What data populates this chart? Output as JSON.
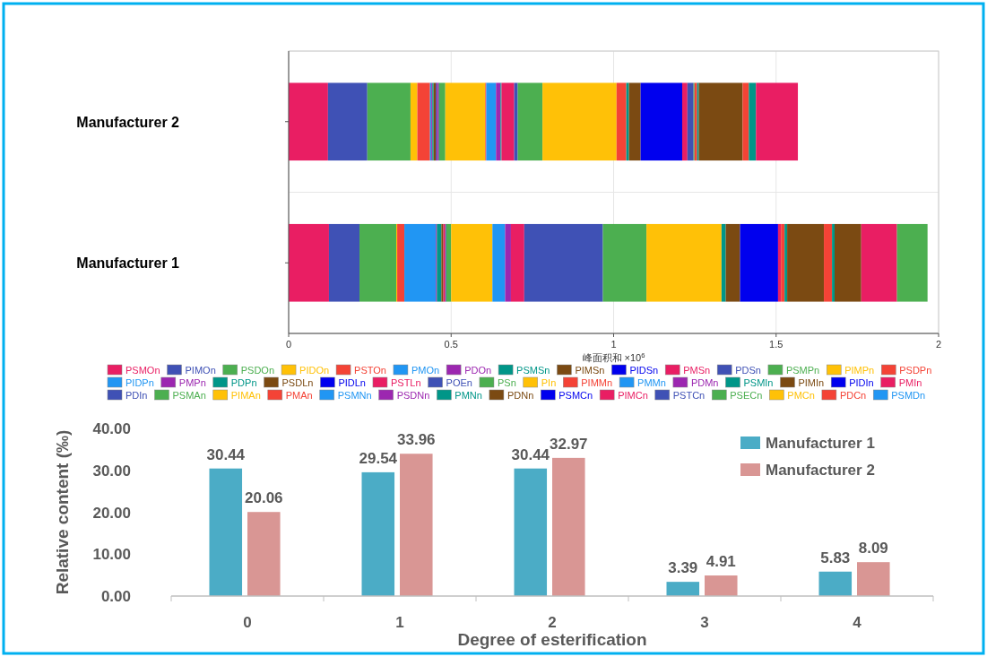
{
  "chart_data": [
    {
      "type": "bar",
      "orientation": "horizontal",
      "stacked": true,
      "categories": [
        "Manufacturer 2",
        "Manufacturer 1"
      ],
      "xlabel": "峰面积和 ×10$^{6}$",
      "xlim": [
        0,
        2
      ],
      "xticks": [
        0,
        0.5,
        1,
        1.5,
        2
      ],
      "grid": true,
      "legend": "bottom",
      "series": [
        {
          "name": "PSMOn",
          "color": "#e91e63",
          "values": [
            0.121,
            0.124
          ]
        },
        {
          "name": "PIMOn",
          "color": "#3f51b5",
          "values": [
            0.121,
            0.094
          ]
        },
        {
          "name": "PSDOn",
          "color": "#4caf50",
          "values": [
            0.133,
            0.113
          ]
        },
        {
          "name": "PIDOn",
          "color": "#ffc107",
          "values": [
            0.021,
            0.003
          ]
        },
        {
          "name": "PSTOn",
          "color": "#f44336",
          "values": [
            0.039,
            0.022
          ]
        },
        {
          "name": "PMOn",
          "color": "#2196f3",
          "values": [
            0.004,
            0.097
          ]
        },
        {
          "name": "PDOn",
          "color": "#9c27b0",
          "values": [
            0.003,
            0.003
          ]
        },
        {
          "name": "PSMSn",
          "color": "#009688",
          "values": [
            0.004,
            0.014
          ]
        },
        {
          "name": "PIMSn",
          "color": "#7b4a12",
          "values": [
            0.008,
            0.006
          ]
        },
        {
          "name": "PIDSn",
          "color": "#0000ee",
          "values": [
            0.003,
            null
          ]
        },
        {
          "name": "PMSn",
          "color": "#e91e63",
          "values": [
            0.003,
            0.006
          ]
        },
        {
          "name": "PDSn",
          "color": "#3f51b5",
          "values": [
            0.003,
            0.003
          ]
        },
        {
          "name": "PSMPn",
          "color": "#4caf50",
          "values": [
            0.019,
            0.015
          ]
        },
        {
          "name": "PIMPn",
          "color": "#ffc107",
          "values": [
            0.123,
            0.127
          ]
        },
        {
          "name": "PSDPn",
          "color": "#f44336",
          "values": [
            0.003,
            null
          ]
        },
        {
          "name": "PIDPn",
          "color": "#2196f3",
          "values": [
            0.03,
            0.039
          ]
        },
        {
          "name": "PMPn",
          "color": "#9c27b0",
          "values": [
            0.014,
            0.018
          ]
        },
        {
          "name": "PDPn",
          "color": "#009688",
          "values": [
            0.003,
            null
          ]
        },
        {
          "name": "PSDLn",
          "color": "#7b4a12",
          "values": [
            null,
            null
          ]
        },
        {
          "name": "PIDLn",
          "color": "#0000ee",
          "values": [
            null,
            null
          ]
        },
        {
          "name": "PSTLn",
          "color": "#e91e63",
          "values": [
            0.039,
            0.041
          ]
        },
        {
          "name": "POEn",
          "color": "#3f51b5",
          "values": [
            0.011,
            0.242
          ]
        },
        {
          "name": "PSn",
          "color": "#4caf50",
          "values": [
            0.076,
            0.134
          ]
        },
        {
          "name": "PIn",
          "color": "#ffc107",
          "values": [
            0.228,
            0.231
          ]
        },
        {
          "name": "PIMMn",
          "color": "#f44336",
          "values": [
            0.03,
            null
          ]
        },
        {
          "name": "PMMn",
          "color": "#2196f3",
          "values": [
            null,
            null
          ]
        },
        {
          "name": "PDMn",
          "color": "#9c27b0",
          "values": [
            null,
            null
          ]
        },
        {
          "name": "PSMIn",
          "color": "#009688",
          "values": [
            0.008,
            0.013
          ]
        },
        {
          "name": "PIMIn",
          "color": "#7b4a12",
          "values": [
            0.036,
            0.044
          ]
        },
        {
          "name": "PIDIn",
          "color": "#0000ee",
          "values": [
            0.128,
            0.117
          ]
        },
        {
          "name": "PMIn",
          "color": "#e91e63",
          "values": [
            0.016,
            0.009
          ]
        },
        {
          "name": "PDIn",
          "color": "#3f51b5",
          "values": [
            0.019,
            null
          ]
        },
        {
          "name": "PSMAn",
          "color": "#4caf50",
          "values": [
            0.003,
            null
          ]
        },
        {
          "name": "PIMAn",
          "color": "#ffc107",
          "values": [
            null,
            null
          ]
        },
        {
          "name": "PMAn",
          "color": "#f44336",
          "values": [
            0.008,
            0.011
          ]
        },
        {
          "name": "PSMNn",
          "color": "#2196f3",
          "values": [
            null,
            null
          ]
        },
        {
          "name": "PSDNn",
          "color": "#9c27b0",
          "values": [
            null,
            null
          ]
        },
        {
          "name": "PMNn",
          "color": "#009688",
          "values": [
            0.005,
            0.008
          ]
        },
        {
          "name": "PDNn",
          "color": "#7b4a12",
          "values": [
            0.135,
            0.113
          ]
        },
        {
          "name": "PSMCn",
          "color": "#0000ee",
          "values": [
            null,
            null
          ]
        },
        {
          "name": "PIMCn",
          "color": "#e91e63",
          "values": [
            null,
            null
          ]
        },
        {
          "name": "PSTCn",
          "color": "#3f51b5",
          "values": [
            null,
            null
          ]
        },
        {
          "name": "PSECn",
          "color": "#4caf50",
          "values": [
            null,
            null
          ]
        },
        {
          "name": "PMCn",
          "color": "#ffc107",
          "values": [
            null,
            null
          ]
        },
        {
          "name": "PDCn",
          "color": "#f44336",
          "values": [
            0.019,
            0.025
          ]
        },
        {
          "name": "PSMDn",
          "color": "#2196f3",
          "values": [
            null,
            null
          ]
        },
        {
          "color": "#009688",
          "values": [
            0.022,
            0.008
          ]
        },
        {
          "color": "#7b4a12",
          "values": [
            null,
            0.082
          ]
        },
        {
          "color": "#e91e63",
          "values": [
            0.129,
            0.11
          ]
        },
        {
          "color": "#4caf50",
          "values": [
            null,
            0.094
          ]
        }
      ]
    },
    {
      "type": "bar",
      "categories": [
        "0",
        "1",
        "2",
        "3",
        "4"
      ],
      "xlabel": "Degree of esterification",
      "ylabel": "Relative content (‰)",
      "ylim": [
        0,
        40
      ],
      "yticks": [
        {
          "value": 0,
          "label": "0.00"
        },
        {
          "value": 10,
          "label": "10.00"
        },
        {
          "value": 20,
          "label": "20.00"
        },
        {
          "value": 30,
          "label": "30.00"
        },
        {
          "value": 40,
          "label": "40.00"
        }
      ],
      "data_labels": true,
      "legend": "top right",
      "series": [
        {
          "name": "Manufacturer 1",
          "color": "#4bacc6",
          "values": [
            30.44,
            29.54,
            30.44,
            3.39,
            5.83
          ]
        },
        {
          "name": "Manufacturer 2",
          "color": "#d99694",
          "values": [
            20.06,
            33.96,
            32.97,
            4.91,
            8.09
          ]
        }
      ]
    }
  ]
}
